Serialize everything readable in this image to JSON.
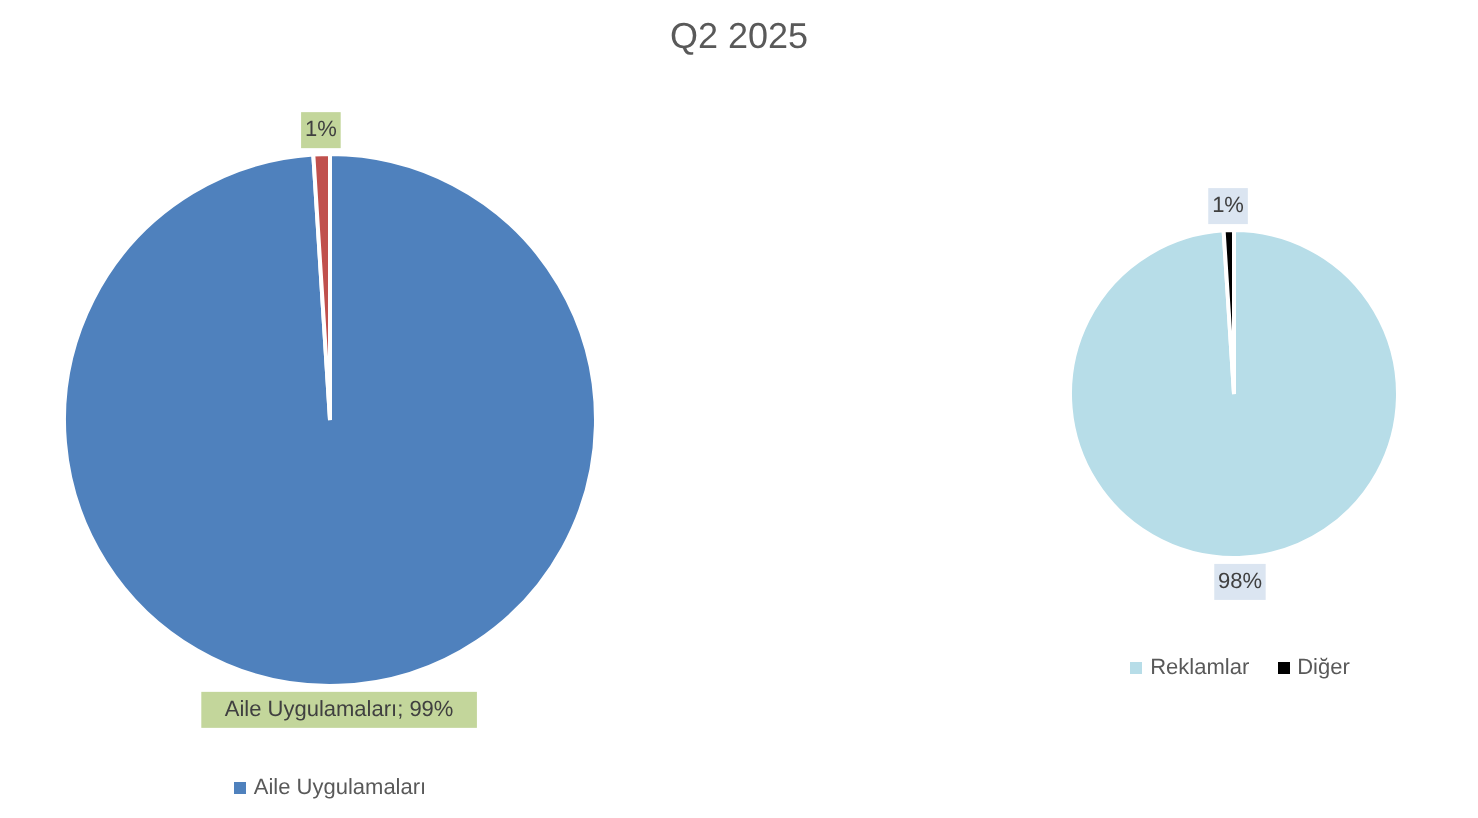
{
  "chart_data": [
    {
      "type": "pie",
      "title": "Q2 2025",
      "categories": [
        "Aile Uygulamaları",
        null
      ],
      "values": [
        99,
        1
      ],
      "colors": [
        "#4f81bd",
        "#c0504d"
      ],
      "value_labels": [
        "Aile Uygulamaları; 99%",
        "1%"
      ],
      "legend": "bottom"
    },
    {
      "type": "pie",
      "categories": [
        "Reklamlar",
        "Diğer"
      ],
      "values": [
        98,
        1
      ],
      "colors": [
        "#b7dde8",
        "#000000"
      ],
      "value_labels": [
        "98%",
        "1%"
      ],
      "legend": "bottom"
    }
  ]
}
